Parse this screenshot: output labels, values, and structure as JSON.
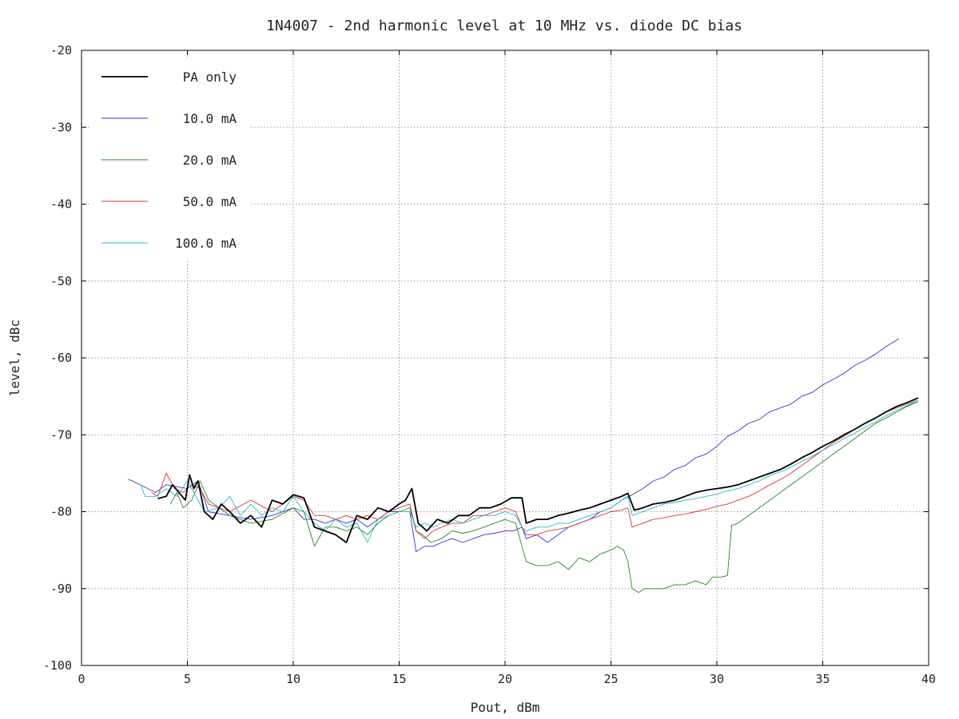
{
  "chart_data": {
    "type": "line",
    "title": "1N4007 - 2nd harmonic level at 10 MHz vs. diode DC bias",
    "xlabel": "Pout, dBm",
    "ylabel": "level, dBc",
    "xlim": [
      0,
      40
    ],
    "ylim": [
      -100,
      -20
    ],
    "xticks": [
      "0",
      "5",
      "10",
      "15",
      "20",
      "25",
      "30",
      "35",
      "40"
    ],
    "yticks": [
      "-20",
      "-30",
      "-40",
      "-50",
      "-60",
      "-70",
      "-80",
      "-90",
      "-100"
    ],
    "grid": true,
    "legend_position": "top-left",
    "series": [
      {
        "name": "PA only",
        "color": "#000000",
        "x": [
          3.6,
          4.0,
          4.3,
          4.6,
          4.9,
          5.1,
          5.3,
          5.5,
          5.8,
          6.2,
          6.6,
          7.0,
          7.5,
          8.0,
          8.5,
          9.0,
          9.5,
          10.0,
          10.5,
          11.0,
          11.5,
          12.0,
          12.5,
          13.0,
          13.5,
          14.0,
          14.5,
          15.0,
          15.3,
          15.6,
          15.9,
          16.3,
          16.8,
          17.3,
          17.8,
          18.3,
          18.8,
          19.3,
          19.8,
          20.3,
          20.8,
          21.0,
          21.5,
          22.0,
          22.5,
          23.0,
          23.5,
          24.0,
          24.5,
          25.0,
          25.5,
          25.8,
          26.1,
          26.5,
          27.0,
          27.5,
          28.0,
          28.5,
          29.0,
          29.5,
          30.0,
          30.5,
          31.0,
          31.5,
          32.0,
          32.5,
          33.0,
          33.5,
          34.0,
          34.5,
          35.0,
          35.5,
          36.0,
          36.5,
          37.0,
          37.5,
          38.0,
          38.5,
          39.0,
          39.5
        ],
        "y": [
          -78.3,
          -78.0,
          -76.5,
          -77.5,
          -78.5,
          -75.2,
          -77.0,
          -76.0,
          -80.0,
          -81.0,
          -79.0,
          -80.0,
          -81.5,
          -80.5,
          -82.0,
          -78.5,
          -79.0,
          -77.8,
          -78.2,
          -82.0,
          -82.5,
          -83.0,
          -84.0,
          -80.5,
          -81.0,
          -79.5,
          -80.0,
          -79.0,
          -78.5,
          -77.0,
          -81.5,
          -82.5,
          -81.0,
          -81.5,
          -80.5,
          -80.5,
          -79.5,
          -79.5,
          -79.0,
          -78.2,
          -78.2,
          -81.5,
          -81.0,
          -81.0,
          -80.5,
          -80.2,
          -79.8,
          -79.5,
          -79.0,
          -78.5,
          -78.0,
          -77.6,
          -79.8,
          -79.5,
          -79.0,
          -78.8,
          -78.5,
          -78.0,
          -77.5,
          -77.2,
          -77.0,
          -76.8,
          -76.5,
          -76.0,
          -75.5,
          -75.0,
          -74.5,
          -73.8,
          -73.0,
          -72.3,
          -71.5,
          -70.8,
          -70.0,
          -69.3,
          -68.5,
          -67.8,
          -67.0,
          -66.3,
          -65.8,
          -65.2
        ]
      },
      {
        "name": "10.0 mA",
        "color": "#3333dd",
        "x": [
          2.2,
          2.4,
          3.5,
          4.0,
          5.0,
          5.5,
          6.0,
          7.0,
          8.0,
          9.0,
          10.0,
          10.5,
          11.0,
          11.5,
          12.0,
          12.5,
          13.0,
          13.5,
          14.0,
          14.5,
          15.0,
          15.5,
          15.8,
          16.2,
          16.6,
          17.0,
          17.5,
          18.0,
          18.5,
          19.0,
          19.5,
          20.0,
          20.4,
          20.8,
          21.0,
          21.5,
          22.0,
          22.5,
          23.0,
          23.5,
          24.0,
          24.5,
          25.0,
          25.5,
          26.0,
          26.5,
          27.0,
          27.5,
          28.0,
          28.5,
          29.0,
          29.5,
          30.0,
          30.5,
          31.0,
          31.5,
          32.0,
          32.5,
          33.0,
          33.5,
          34.0,
          34.5,
          35.0,
          35.5,
          36.0,
          36.5,
          37.0,
          37.5,
          38.0,
          38.6
        ],
        "y": [
          -75.8,
          -76.0,
          -77.5,
          -76.5,
          -77.0,
          -76.0,
          -80.0,
          -80.5,
          -81.0,
          -80.5,
          -79.5,
          -81.0,
          -81.0,
          -81.5,
          -81.0,
          -81.5,
          -81.0,
          -82.0,
          -81.0,
          -80.0,
          -80.0,
          -80.0,
          -85.2,
          -84.5,
          -84.5,
          -84.0,
          -83.5,
          -84.0,
          -83.5,
          -83.0,
          -82.8,
          -82.5,
          -82.5,
          -82.0,
          -83.5,
          -83.0,
          -84.0,
          -83.0,
          -82.0,
          -81.5,
          -81.0,
          -80.0,
          -79.5,
          -78.5,
          -77.8,
          -77.0,
          -76.0,
          -75.5,
          -74.5,
          -74.0,
          -73.0,
          -72.5,
          -71.5,
          -70.2,
          -69.5,
          -68.5,
          -68.0,
          -67.0,
          -66.5,
          -66.0,
          -65.0,
          -64.5,
          -63.5,
          -62.8,
          -62.0,
          -61.0,
          -60.3,
          -59.5,
          -58.5,
          -57.5
        ]
      },
      {
        "name": "20.0 mA",
        "color": "#228822",
        "x": [
          4.2,
          4.5,
          4.8,
          5.2,
          5.6,
          6.0,
          7.0,
          8.0,
          9.0,
          10.0,
          10.5,
          11.0,
          11.5,
          12.0,
          12.5,
          13.0,
          13.5,
          14.0,
          14.5,
          15.0,
          15.5,
          15.8,
          16.1,
          16.5,
          17.0,
          17.5,
          18.0,
          18.5,
          19.0,
          19.5,
          20.0,
          20.5,
          20.7,
          21.0,
          21.5,
          22.0,
          22.5,
          23.0,
          23.5,
          24.0,
          24.5,
          25.0,
          25.3,
          25.6,
          25.8,
          26.0,
          26.3,
          26.6,
          27.0,
          27.5,
          28.0,
          28.5,
          29.0,
          29.5,
          29.8,
          30.2,
          30.5,
          30.7,
          31.0,
          31.5,
          32.0,
          32.5,
          33.0,
          33.5,
          34.0,
          34.5,
          35.0,
          35.5,
          36.0,
          36.5,
          37.0,
          37.5,
          38.0,
          38.5,
          39.0,
          39.5
        ],
        "y": [
          -79.0,
          -77.5,
          -79.5,
          -78.5,
          -76.0,
          -78.5,
          -80.5,
          -81.5,
          -81.0,
          -79.5,
          -80.0,
          -84.5,
          -82.0,
          -82.0,
          -82.5,
          -82.0,
          -83.0,
          -81.5,
          -80.5,
          -80.0,
          -79.5,
          -82.5,
          -83.0,
          -84.0,
          -83.5,
          -82.5,
          -82.8,
          -82.5,
          -82.0,
          -81.5,
          -81.0,
          -81.5,
          -83.5,
          -86.5,
          -87.0,
          -87.0,
          -86.5,
          -87.5,
          -86.0,
          -86.5,
          -85.5,
          -85.0,
          -84.5,
          -85.0,
          -86.5,
          -90.0,
          -90.5,
          -90.0,
          -90.0,
          -90.0,
          -89.5,
          -89.5,
          -89.0,
          -89.5,
          -88.5,
          -88.5,
          -88.3,
          -81.8,
          -81.5,
          -80.5,
          -79.5,
          -78.5,
          -77.5,
          -76.5,
          -75.5,
          -74.5,
          -73.5,
          -72.5,
          -71.5,
          -70.5,
          -69.5,
          -68.5,
          -67.8,
          -67.0,
          -66.3,
          -65.7
        ]
      },
      {
        "name": "50.0 mA",
        "color": "#dd3333",
        "x": [
          3.3,
          3.6,
          4.0,
          4.4,
          4.8,
          5.2,
          5.6,
          6.0,
          7.0,
          8.0,
          9.0,
          10.0,
          10.5,
          11.0,
          11.5,
          12.0,
          12.5,
          13.0,
          13.5,
          14.0,
          14.5,
          15.0,
          15.5,
          15.8,
          16.2,
          16.6,
          17.0,
          17.5,
          18.0,
          18.5,
          19.0,
          19.5,
          20.0,
          20.5,
          20.8,
          21.0,
          21.5,
          22.0,
          22.5,
          23.0,
          23.5,
          24.0,
          24.5,
          25.0,
          25.5,
          25.8,
          26.0,
          26.5,
          27.0,
          27.5,
          28.0,
          28.5,
          29.0,
          29.5,
          30.0,
          30.5,
          31.0,
          31.5,
          32.0,
          32.5,
          33.0,
          33.5,
          34.0,
          34.5,
          35.0,
          35.5,
          36.0,
          36.5,
          37.0,
          37.5,
          38.0,
          38.5,
          39.0,
          39.5
        ],
        "y": [
          -77.5,
          -78.0,
          -75.0,
          -77.0,
          -77.5,
          -76.5,
          -77.0,
          -79.0,
          -80.0,
          -78.5,
          -80.0,
          -78.0,
          -78.5,
          -80.5,
          -80.5,
          -81.0,
          -80.5,
          -81.0,
          -80.5,
          -81.0,
          -80.0,
          -79.5,
          -79.0,
          -82.5,
          -83.5,
          -82.5,
          -82.0,
          -81.5,
          -81.5,
          -80.5,
          -80.5,
          -80.0,
          -79.5,
          -80.0,
          -82.0,
          -83.0,
          -83.0,
          -82.5,
          -82.3,
          -82.0,
          -81.5,
          -81.0,
          -80.5,
          -80.0,
          -79.8,
          -79.5,
          -82.0,
          -81.5,
          -81.0,
          -80.8,
          -80.5,
          -80.3,
          -80.0,
          -79.7,
          -79.3,
          -79.0,
          -78.5,
          -78.0,
          -77.3,
          -76.5,
          -75.8,
          -75.0,
          -74.0,
          -73.0,
          -72.0,
          -71.0,
          -70.2,
          -69.3,
          -68.5,
          -67.8,
          -67.0,
          -66.5,
          -66.0,
          -65.5
        ]
      },
      {
        "name": "100.0 mA",
        "color": "#22bbcc",
        "x": [
          2.8,
          3.0,
          3.5,
          4.0,
          4.5,
          5.0,
          5.4,
          5.8,
          6.5,
          7.0,
          7.5,
          8.0,
          8.5,
          9.0,
          9.5,
          10.0,
          10.5,
          11.0,
          11.5,
          12.0,
          12.5,
          13.0,
          13.5,
          14.0,
          14.5,
          15.0,
          15.5,
          15.8,
          16.2,
          16.6,
          17.0,
          17.5,
          18.0,
          18.5,
          19.0,
          19.5,
          20.0,
          20.5,
          20.8,
          21.0,
          21.5,
          22.0,
          22.5,
          23.0,
          23.5,
          24.0,
          24.5,
          25.0,
          25.5,
          25.8,
          26.0,
          26.5,
          27.0,
          27.5,
          28.0,
          28.5,
          29.0,
          29.5,
          30.0,
          30.5,
          31.0,
          31.5,
          32.0,
          32.5,
          33.0,
          33.5,
          34.0,
          34.5,
          35.0,
          35.5,
          36.0,
          36.5,
          37.0,
          37.5,
          38.0,
          38.5,
          39.0,
          39.5
        ],
        "y": [
          -76.5,
          -78.0,
          -78.0,
          -77.0,
          -78.0,
          -76.0,
          -78.0,
          -80.0,
          -79.5,
          -78.0,
          -80.5,
          -79.0,
          -80.5,
          -79.5,
          -80.0,
          -78.0,
          -80.0,
          -81.5,
          -82.5,
          -81.0,
          -82.0,
          -81.5,
          -84.0,
          -81.0,
          -80.5,
          -80.0,
          -80.0,
          -82.0,
          -81.5,
          -82.0,
          -81.5,
          -81.0,
          -81.5,
          -81.0,
          -80.5,
          -80.5,
          -80.0,
          -80.5,
          -82.0,
          -82.5,
          -82.0,
          -82.0,
          -81.5,
          -81.5,
          -81.0,
          -80.5,
          -80.0,
          -79.5,
          -78.5,
          -78.0,
          -80.5,
          -80.0,
          -79.5,
          -79.0,
          -78.8,
          -78.5,
          -78.3,
          -78.0,
          -77.7,
          -77.3,
          -77.0,
          -76.5,
          -76.0,
          -75.3,
          -74.8,
          -74.2,
          -73.5,
          -72.8,
          -72.0,
          -71.3,
          -70.5,
          -69.8,
          -69.0,
          -68.3,
          -67.5,
          -66.8,
          -66.2,
          -65.5
        ]
      }
    ]
  }
}
